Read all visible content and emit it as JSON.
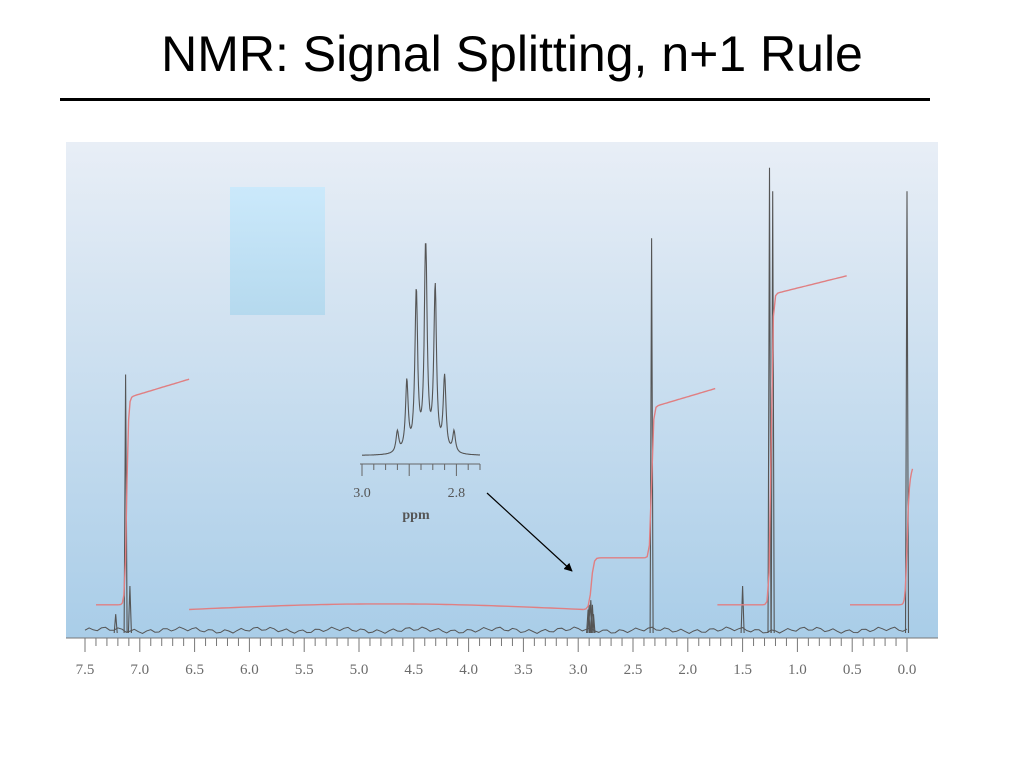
{
  "slide": {
    "title": "NMR:  Signal Splitting, n+1 Rule"
  },
  "colors": {
    "background_top": "#e8eef6",
    "background_bottom": "#a9cde8",
    "spectrum_line": "#555555",
    "integral_line": "#e07f82",
    "placeholder_box": "#bfe2f6",
    "axis": "#777777"
  },
  "chart_data": [
    {
      "type": "line",
      "title": "",
      "xlabel": "",
      "ylabel": "",
      "xlim": [
        7.5,
        0.0
      ],
      "x_reversed": true,
      "grid": false,
      "x_ticks": [
        "7.5",
        "7.0",
        "6.5",
        "6.0",
        "5.5",
        "5.0",
        "4.5",
        "4.0",
        "3.5",
        "3.0",
        "2.5",
        "2.0",
        "1.5",
        "1.0",
        "0.5",
        "0.0"
      ],
      "peaks": [
        {
          "ppm": 7.22,
          "height": 0.04
        },
        {
          "ppm": 7.13,
          "height": 0.55
        },
        {
          "ppm": 7.09,
          "height": 0.1
        },
        {
          "ppm": 2.91,
          "height": 0.05
        },
        {
          "ppm": 2.9,
          "height": 0.06
        },
        {
          "ppm": 2.885,
          "height": 0.07
        },
        {
          "ppm": 2.87,
          "height": 0.06
        },
        {
          "ppm": 2.86,
          "height": 0.04
        },
        {
          "ppm": 2.33,
          "height": 0.84
        },
        {
          "ppm": 1.5,
          "height": 0.1
        },
        {
          "ppm": 1.255,
          "height": 0.99
        },
        {
          "ppm": 1.225,
          "height": 0.94
        },
        {
          "ppm": 0.0,
          "height": 0.94
        }
      ],
      "integrals": [
        {
          "from_ppm": 7.4,
          "to_ppm": 6.55,
          "rise_at": 7.12,
          "start_level": 0.06,
          "end_level": 0.5
        },
        {
          "from_ppm": 6.55,
          "to_ppm": 2.95,
          "rise_at": null,
          "start_level": 0.05,
          "end_level": 0.05
        },
        {
          "from_ppm": 2.95,
          "to_ppm": 1.75,
          "rise_at": 2.33,
          "start_level": 0.05,
          "end_level": 0.48,
          "step_at": 2.88,
          "step_level": 0.16
        },
        {
          "from_ppm": 1.73,
          "to_ppm": 0.55,
          "rise_at": 1.24,
          "start_level": 0.06,
          "end_level": 0.72
        },
        {
          "from_ppm": 0.52,
          "to_ppm": -0.05,
          "rise_at": 0.0,
          "start_level": 0.06,
          "end_level": 0.31
        }
      ]
    },
    {
      "type": "line",
      "title": "",
      "inset": true,
      "xlabel": "ppm",
      "xlim": [
        3.0,
        2.75
      ],
      "x_reversed": true,
      "x_ticks": [
        "3.0",
        "2.8"
      ],
      "peaks": [
        {
          "ppm": 2.925,
          "height": 0.1
        },
        {
          "ppm": 2.905,
          "height": 0.33
        },
        {
          "ppm": 2.885,
          "height": 0.75
        },
        {
          "ppm": 2.865,
          "height": 1.0
        },
        {
          "ppm": 2.845,
          "height": 0.77
        },
        {
          "ppm": 2.825,
          "height": 0.35
        },
        {
          "ppm": 2.805,
          "height": 0.1
        }
      ]
    }
  ]
}
